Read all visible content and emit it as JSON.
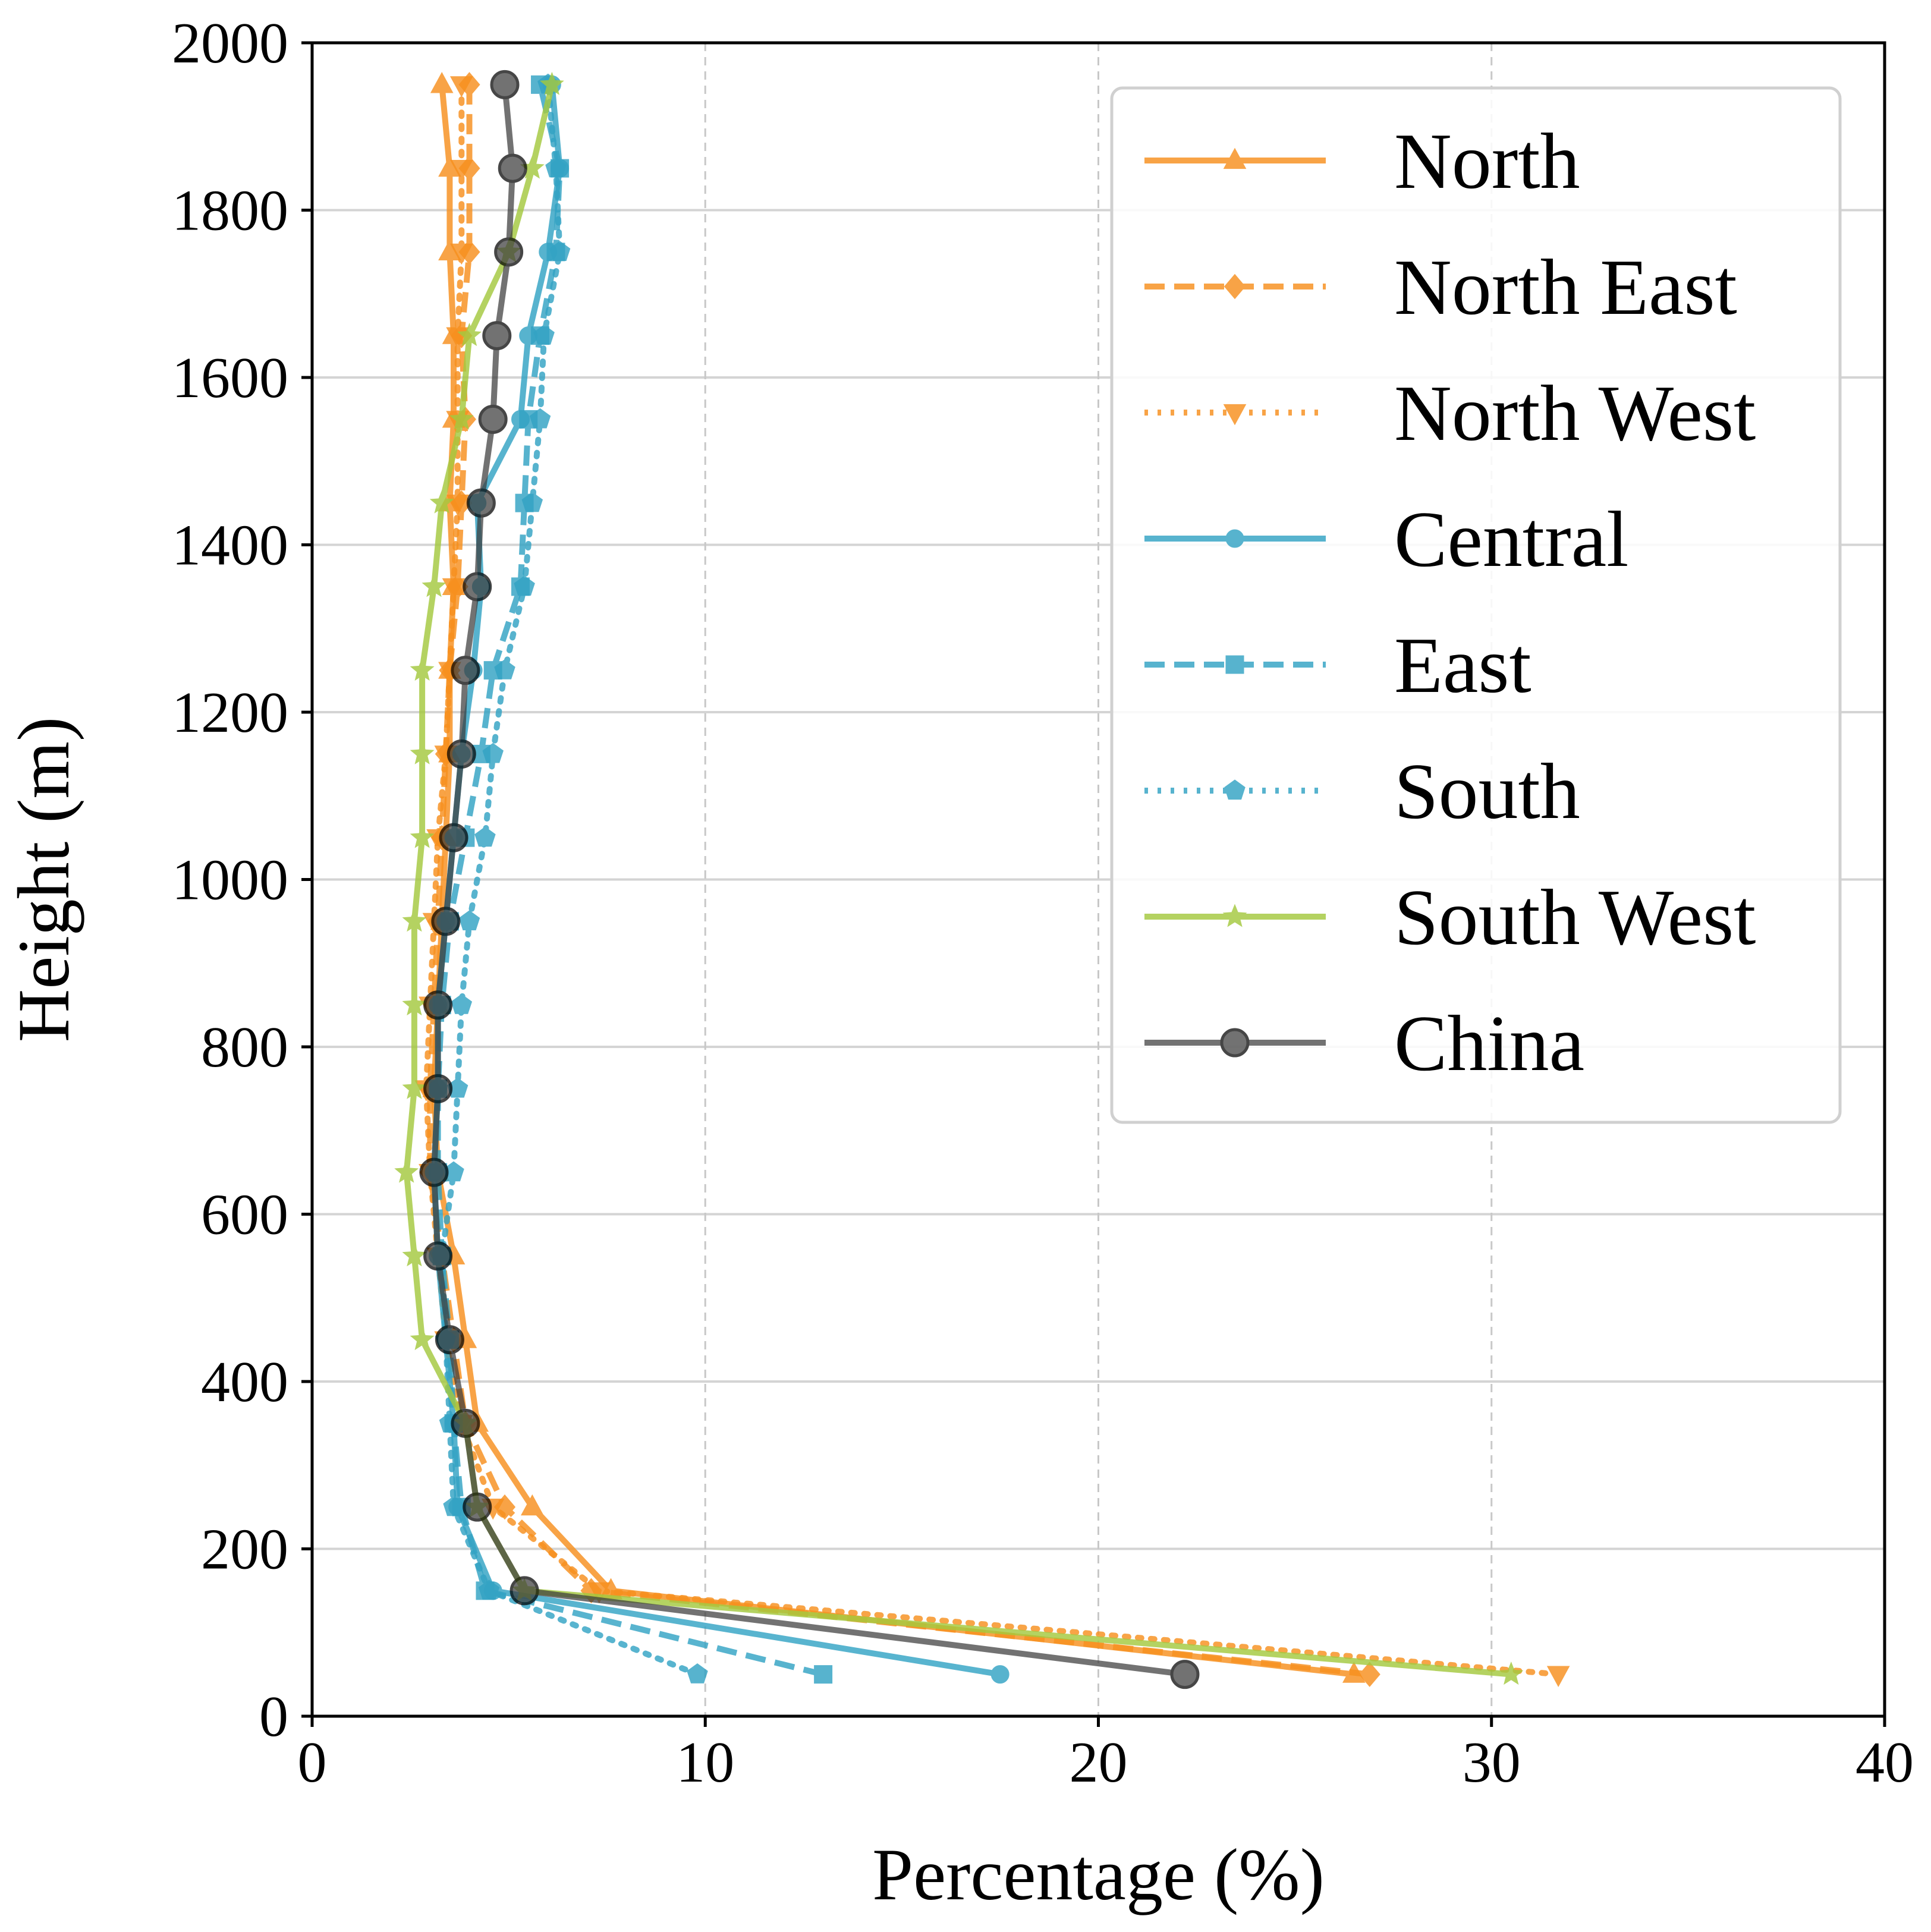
{
  "chart_data": {
    "type": "line",
    "title": "",
    "xlabel": "Percentage (%)",
    "ylabel": "Height (m)",
    "xlim": [
      0,
      40
    ],
    "ylim": [
      0,
      2000
    ],
    "xticks": [
      0,
      10,
      20,
      30,
      40
    ],
    "yticks": [
      0,
      200,
      400,
      600,
      800,
      1000,
      1200,
      1400,
      1600,
      1800,
      2000
    ],
    "xtick_labels": [
      "0",
      "10",
      "20",
      "30",
      "40"
    ],
    "ytick_labels": [
      "0",
      "200",
      "400",
      "600",
      "800",
      "1000",
      "1200",
      "1400",
      "1600",
      "1800",
      "2000"
    ],
    "grid": {
      "x": "dashed",
      "y": "solid"
    },
    "legend_position": "upper-right",
    "heights": [
      50,
      150,
      250,
      350,
      450,
      550,
      650,
      750,
      850,
      950,
      1050,
      1150,
      1250,
      1350,
      1450,
      1550,
      1650,
      1750,
      1850,
      1950
    ],
    "series": [
      {
        "name": "North",
        "color": "#f7901e",
        "linestyle": "solid",
        "marker": "triangle-up",
        "values": [
          26.5,
          7.6,
          5.6,
          4.2,
          3.9,
          3.6,
          3.2,
          3.1,
          3.2,
          3.3,
          3.4,
          3.5,
          3.5,
          3.6,
          3.5,
          3.6,
          3.6,
          3.5,
          3.5,
          3.3
        ]
      },
      {
        "name": "North East",
        "color": "#f7901e",
        "linestyle": "dashed",
        "marker": "diamond",
        "values": [
          26.9,
          7.1,
          4.9,
          3.9,
          3.6,
          3.3,
          3.0,
          3.0,
          3.1,
          3.2,
          3.3,
          3.4,
          3.5,
          3.7,
          3.8,
          3.9,
          3.8,
          4.0,
          4.0,
          4.0
        ]
      },
      {
        "name": "North West",
        "color": "#f7901e",
        "linestyle": "dotted",
        "marker": "triangle-down",
        "values": [
          31.7,
          7.3,
          4.6,
          3.8,
          3.4,
          3.2,
          3.0,
          2.9,
          3.0,
          3.1,
          3.2,
          3.4,
          3.5,
          3.6,
          3.7,
          3.7,
          3.7,
          3.8,
          3.8,
          3.8
        ]
      },
      {
        "name": "Central",
        "color": "#33a3c4",
        "linestyle": "solid",
        "marker": "circle",
        "values": [
          17.5,
          4.6,
          3.7,
          3.6,
          3.4,
          3.2,
          3.1,
          3.2,
          3.2,
          3.4,
          3.6,
          3.8,
          4.1,
          4.3,
          4.2,
          5.3,
          5.5,
          6.0,
          6.3,
          6.1
        ]
      },
      {
        "name": "East",
        "color": "#33a3c4",
        "linestyle": "dashed",
        "marker": "square",
        "values": [
          13.0,
          4.4,
          3.8,
          3.6,
          3.5,
          3.3,
          3.2,
          3.2,
          3.3,
          3.5,
          3.9,
          4.3,
          4.6,
          5.3,
          5.4,
          5.5,
          5.8,
          6.2,
          6.3,
          5.8
        ]
      },
      {
        "name": "South",
        "color": "#33a3c4",
        "linestyle": "dotted",
        "marker": "pentagon",
        "values": [
          9.8,
          4.5,
          3.6,
          3.5,
          3.4,
          3.3,
          3.6,
          3.7,
          3.8,
          4.0,
          4.4,
          4.6,
          4.9,
          5.4,
          5.6,
          5.8,
          5.9,
          6.3,
          6.2,
          6.0
        ]
      },
      {
        "name": "South West",
        "color": "#a4c93f",
        "linestyle": "solid",
        "marker": "star",
        "values": [
          30.5,
          5.4,
          4.2,
          3.9,
          2.8,
          2.6,
          2.4,
          2.6,
          2.6,
          2.6,
          2.8,
          2.8,
          2.8,
          3.1,
          3.3,
          3.8,
          4.0,
          5.0,
          5.6,
          6.1
        ]
      },
      {
        "name": "China",
        "color": "#3c3c3c",
        "linestyle": "solid",
        "marker": "circle-large",
        "values": [
          22.2,
          5.4,
          4.2,
          3.9,
          3.5,
          3.2,
          3.1,
          3.2,
          3.2,
          3.4,
          3.6,
          3.8,
          3.9,
          4.2,
          4.3,
          4.6,
          4.7,
          5.0,
          5.1,
          4.9
        ]
      }
    ]
  }
}
